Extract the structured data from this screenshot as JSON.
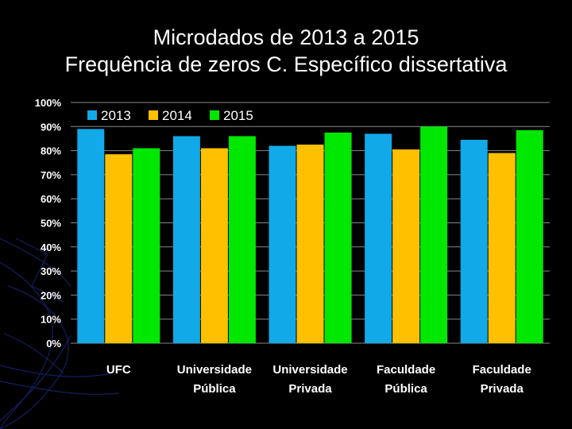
{
  "title": {
    "line1": "Microdados de 2013 a 2015",
    "line2": "Frequência de zeros C. Específico dissertativa"
  },
  "chart_data": {
    "type": "bar",
    "categories": [
      [
        "UFC"
      ],
      [
        "Universidade",
        "Pública"
      ],
      [
        "Universidade",
        "Privada"
      ],
      [
        "Faculdade",
        "Pública"
      ],
      [
        "Faculdade",
        "Privada"
      ]
    ],
    "series": [
      {
        "name": "2013",
        "color": "#11a9e8",
        "values": [
          89,
          86,
          82,
          87,
          84.5
        ]
      },
      {
        "name": "2014",
        "color": "#ffc000",
        "values": [
          78.5,
          81,
          82.5,
          80.5,
          79
        ]
      },
      {
        "name": "2015",
        "color": "#00e800",
        "values": [
          81,
          86,
          87.5,
          90,
          88.5
        ]
      }
    ],
    "ylim": [
      0,
      100
    ],
    "yticks": [
      0,
      10,
      20,
      30,
      40,
      50,
      60,
      70,
      80,
      90,
      100
    ],
    "ytick_labels": [
      "0%",
      "10%",
      "20%",
      "30%",
      "40%",
      "50%",
      "60%",
      "70%",
      "80%",
      "90%",
      "100%"
    ],
    "grid": true,
    "legend": "top-left",
    "xlabel": "",
    "ylabel": ""
  },
  "colors": {
    "background": "#000000",
    "plot_background": "#000000",
    "grid": "#888888",
    "axis_text": "#ffffff"
  }
}
